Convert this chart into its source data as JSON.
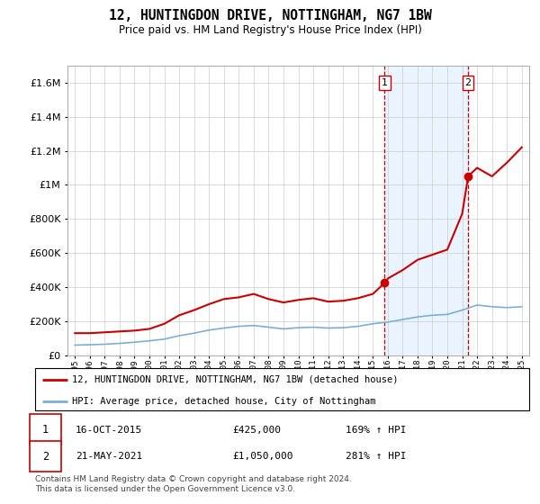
{
  "title": "12, HUNTINGDON DRIVE, NOTTINGHAM, NG7 1BW",
  "subtitle": "Price paid vs. HM Land Registry's House Price Index (HPI)",
  "legend_line1": "12, HUNTINGDON DRIVE, NOTTINGHAM, NG7 1BW (detached house)",
  "legend_line2": "HPI: Average price, detached house, City of Nottingham",
  "footnote": "Contains HM Land Registry data © Crown copyright and database right 2024.\nThis data is licensed under the Open Government Licence v3.0.",
  "transaction1_date": "16-OCT-2015",
  "transaction1_price": "£425,000",
  "transaction1_hpi": "169% ↑ HPI",
  "transaction2_date": "21-MAY-2021",
  "transaction2_price": "£1,050,000",
  "transaction2_hpi": "281% ↑ HPI",
  "marker1_x": 2015.8,
  "marker1_y": 425000,
  "marker2_x": 2021.4,
  "marker2_y": 1050000,
  "vline1_x": 2015.8,
  "vline2_x": 2021.4,
  "ylim": [
    0,
    1700000
  ],
  "xlim": [
    1994.5,
    2025.5
  ],
  "hpi_color": "#7bafd4",
  "price_color": "#cc0000",
  "vline_color": "#cc0000",
  "background_shade_color": "#ddeeff",
  "grid_color": "#cccccc",
  "hpi_years": [
    1995,
    1996,
    1997,
    1998,
    1999,
    2000,
    2001,
    2002,
    2003,
    2004,
    2005,
    2006,
    2007,
    2008,
    2009,
    2010,
    2011,
    2012,
    2013,
    2014,
    2015,
    2016,
    2017,
    2018,
    2019,
    2020,
    2021,
    2022,
    2023,
    2024,
    2025
  ],
  "hpi_values": [
    60000,
    62000,
    65000,
    70000,
    77000,
    85000,
    95000,
    115000,
    130000,
    148000,
    160000,
    170000,
    175000,
    165000,
    155000,
    162000,
    165000,
    160000,
    162000,
    170000,
    185000,
    195000,
    210000,
    225000,
    235000,
    240000,
    265000,
    295000,
    285000,
    280000,
    285000
  ],
  "price_years": [
    1995,
    1996,
    1997,
    1998,
    1999,
    2000,
    2001,
    2002,
    2003,
    2004,
    2005,
    2006,
    2007,
    2008,
    2009,
    2010,
    2011,
    2012,
    2013,
    2014,
    2015,
    2015.8,
    2016,
    2017,
    2018,
    2019,
    2020,
    2021,
    2021.4,
    2022,
    2023,
    2024,
    2025
  ],
  "price_values": [
    130000,
    130000,
    135000,
    140000,
    145000,
    155000,
    185000,
    235000,
    265000,
    300000,
    330000,
    340000,
    360000,
    330000,
    310000,
    325000,
    335000,
    315000,
    320000,
    335000,
    360000,
    425000,
    450000,
    500000,
    560000,
    590000,
    620000,
    830000,
    1050000,
    1100000,
    1050000,
    1130000,
    1220000
  ]
}
